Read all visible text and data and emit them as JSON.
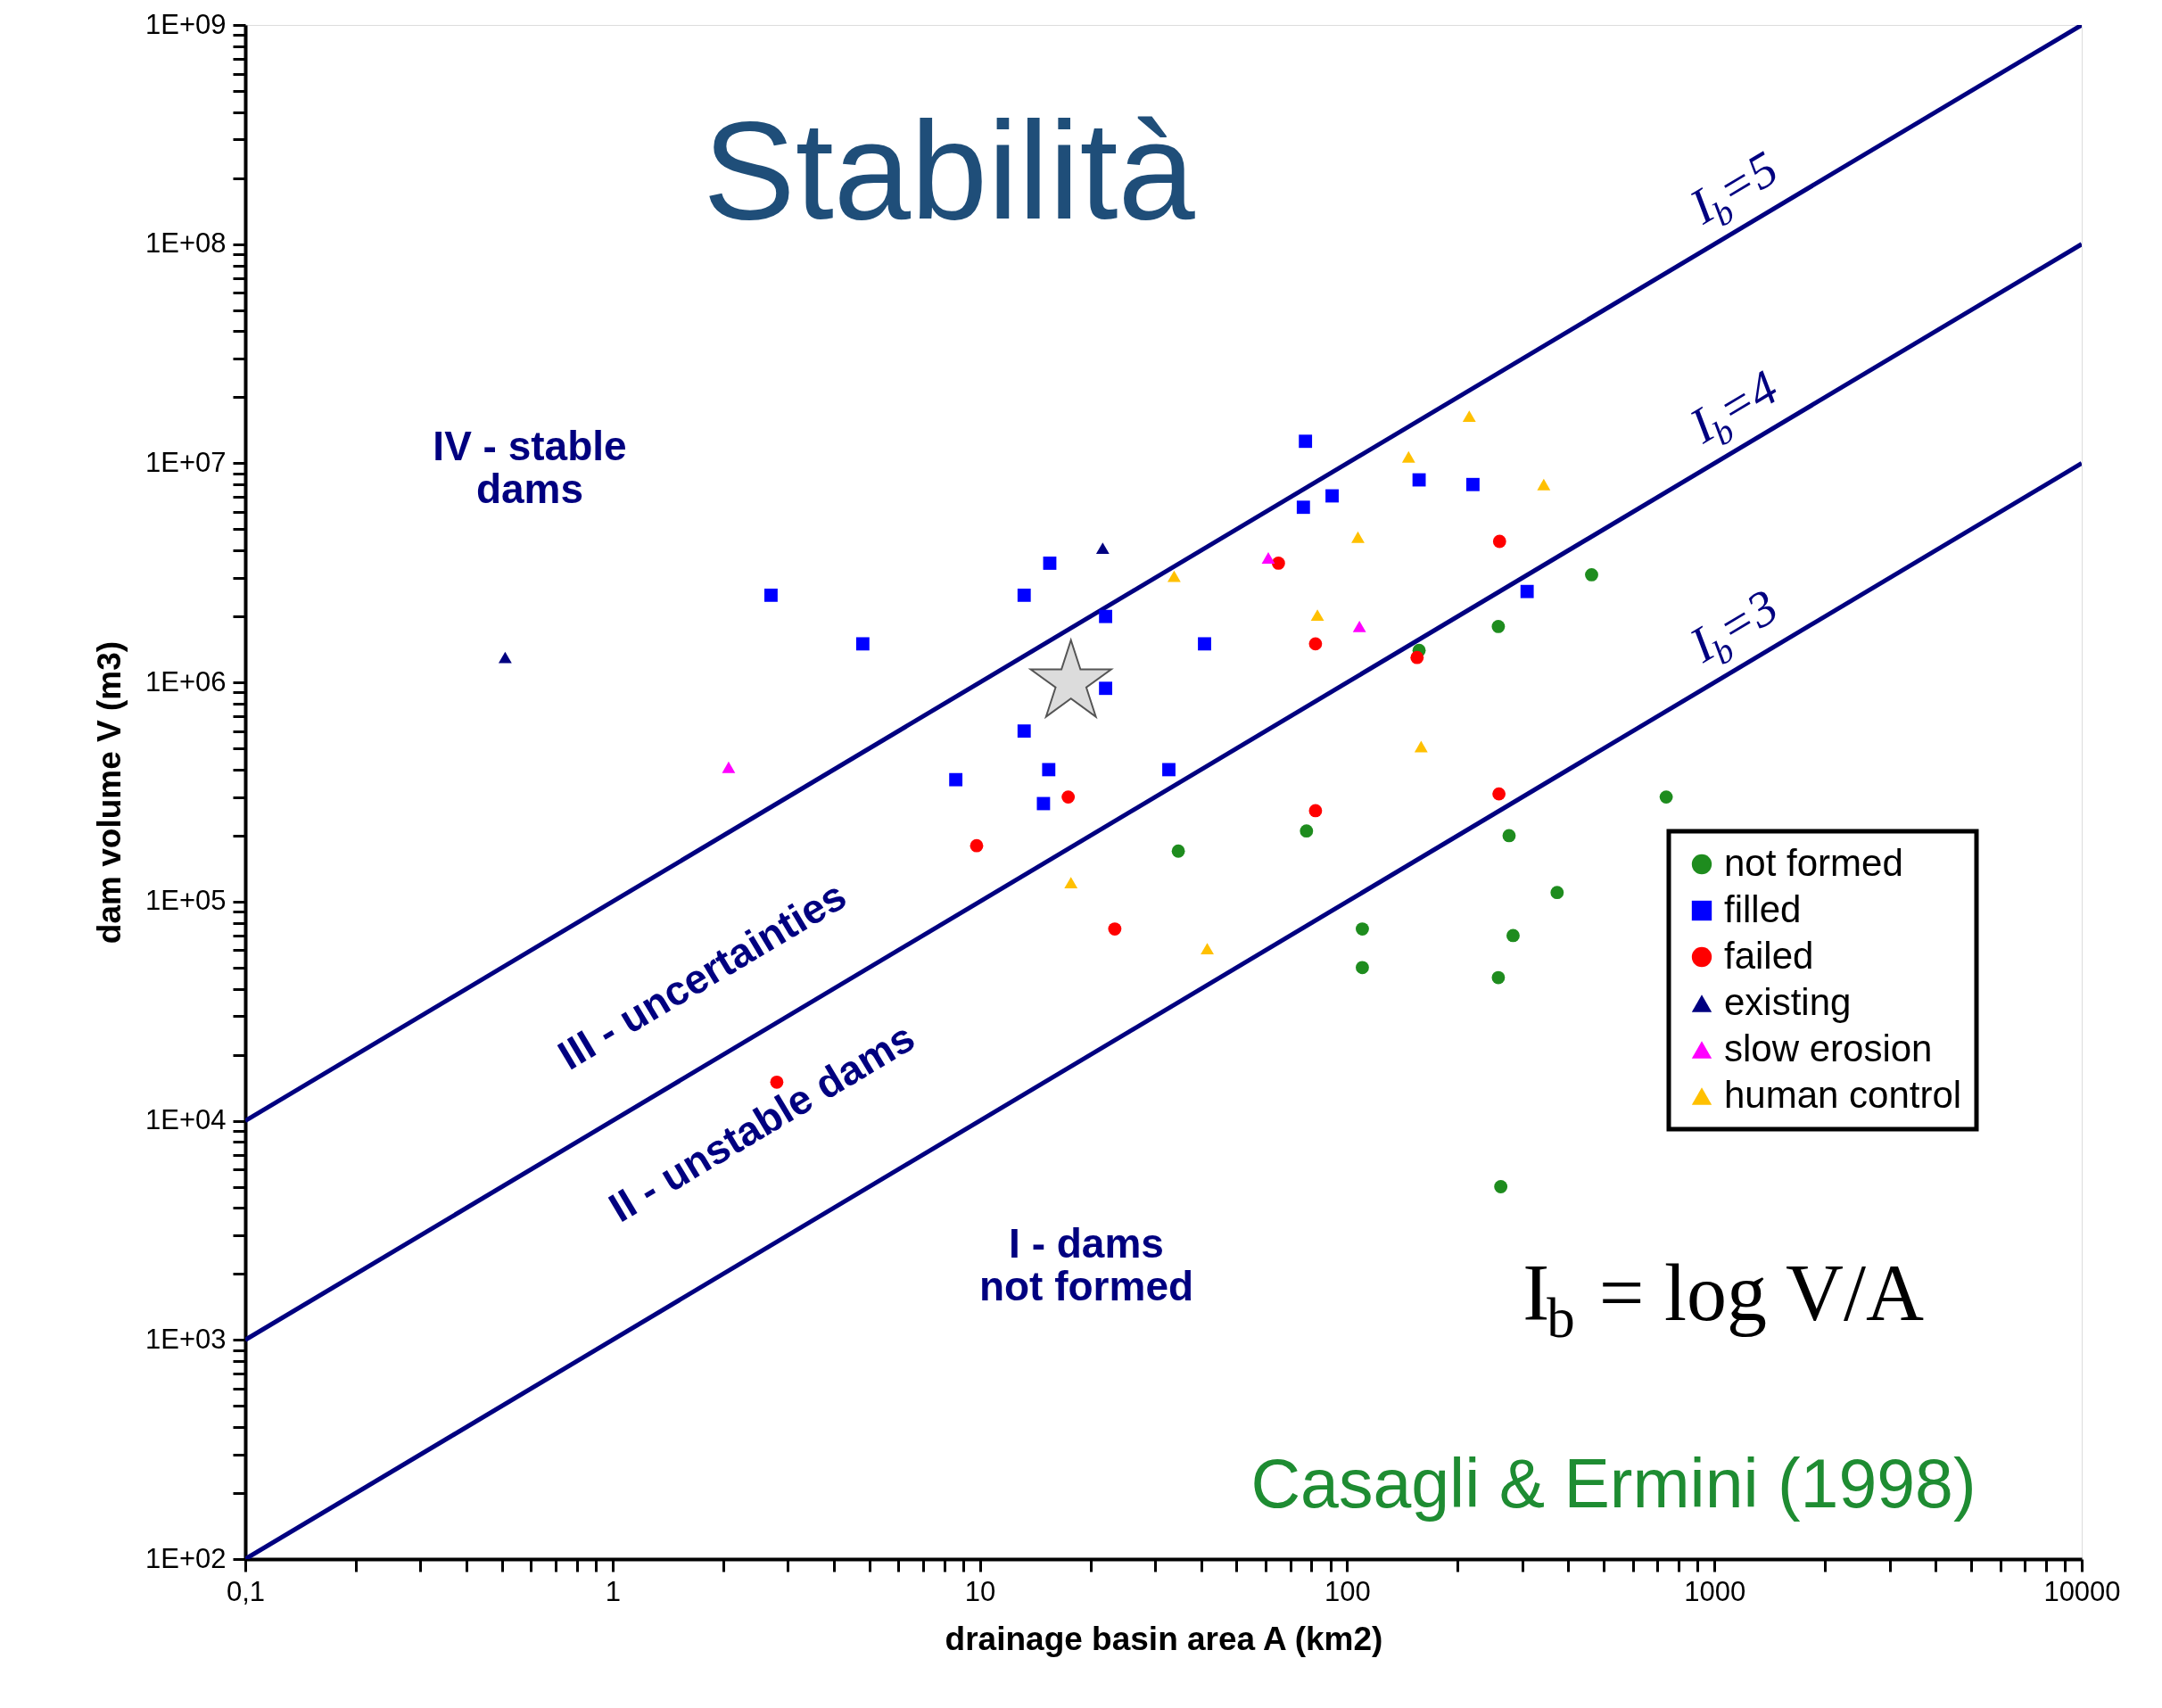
{
  "chart_data": {
    "type": "scatter",
    "title": "Stabilità",
    "xlabel": "drainage basin area A (km2)",
    "ylabel": "dam volume V (m3)",
    "log": "xy",
    "grid": false,
    "legend": "right",
    "xlim": [
      0.1,
      10000
    ],
    "ylim": [
      100,
      1000000000.0
    ],
    "xticks": [
      {
        "value": 0.1,
        "label": "0,1"
      },
      {
        "value": 0.2,
        "label": null
      },
      {
        "value": 0.3,
        "label": null
      },
      {
        "value": 0.4,
        "label": null
      },
      {
        "value": 0.5,
        "label": null
      },
      {
        "value": 0.6,
        "label": null
      },
      {
        "value": 0.7,
        "label": null
      },
      {
        "value": 0.8,
        "label": null
      },
      {
        "value": 0.9,
        "label": null
      },
      1,
      {
        "value": 2,
        "label": null
      },
      {
        "value": 3,
        "label": null
      },
      {
        "value": 4,
        "label": null
      },
      {
        "value": 5,
        "label": null
      },
      {
        "value": 6,
        "label": null
      },
      {
        "value": 7,
        "label": null
      },
      {
        "value": 8,
        "label": null
      },
      {
        "value": 9,
        "label": null
      },
      10,
      {
        "value": 20,
        "label": null
      },
      {
        "value": 30,
        "label": null
      },
      {
        "value": 40,
        "label": null
      },
      {
        "value": 50,
        "label": null
      },
      {
        "value": 60,
        "label": null
      },
      {
        "value": 70,
        "label": null
      },
      {
        "value": 80,
        "label": null
      },
      {
        "value": 90,
        "label": null
      },
      100,
      {
        "value": 200,
        "label": null
      },
      {
        "value": 300,
        "label": null
      },
      {
        "value": 400,
        "label": null
      },
      {
        "value": 500,
        "label": null
      },
      {
        "value": 600,
        "label": null
      },
      {
        "value": 700,
        "label": null
      },
      {
        "value": 800,
        "label": null
      },
      {
        "value": 900,
        "label": null
      },
      1000,
      {
        "value": 2000,
        "label": null
      },
      {
        "value": 3000,
        "label": null
      },
      {
        "value": 4000,
        "label": null
      },
      {
        "value": 5000,
        "label": null
      },
      {
        "value": 6000,
        "label": null
      },
      {
        "value": 7000,
        "label": null
      },
      {
        "value": 8000,
        "label": null
      },
      {
        "value": 9000,
        "label": null
      },
      10000
    ],
    "yticks": [
      {
        "value": 100.0,
        "label": "1E+02"
      },
      {
        "value": 200.0,
        "label": null
      },
      {
        "value": 300.0,
        "label": null
      },
      {
        "value": 400.0,
        "label": null
      },
      {
        "value": 500.0,
        "label": null
      },
      {
        "value": 600.0,
        "label": null
      },
      {
        "value": 700.0,
        "label": null
      },
      {
        "value": 800.0,
        "label": null
      },
      {
        "value": 900.0,
        "label": null
      },
      {
        "value": 1000.0,
        "label": "1E+03"
      },
      {
        "value": 2000.0,
        "label": null
      },
      {
        "value": 3000.0,
        "label": null
      },
      {
        "value": 4000.0,
        "label": null
      },
      {
        "value": 5000.0,
        "label": null
      },
      {
        "value": 6000.0,
        "label": null
      },
      {
        "value": 7000.0,
        "label": null
      },
      {
        "value": 8000.0,
        "label": null
      },
      {
        "value": 9000.0,
        "label": null
      },
      {
        "value": 10000.0,
        "label": "1E+04"
      },
      {
        "value": 20000.0,
        "label": null
      },
      {
        "value": 30000.0,
        "label": null
      },
      {
        "value": 40000.0,
        "label": null
      },
      {
        "value": 50000.0,
        "label": null
      },
      {
        "value": 60000.0,
        "label": null
      },
      {
        "value": 70000.0,
        "label": null
      },
      {
        "value": 80000.0,
        "label": null
      },
      {
        "value": 90000.0,
        "label": null
      },
      {
        "value": 100000.0,
        "label": "1E+05"
      },
      {
        "value": 200000.0,
        "label": null
      },
      {
        "value": 300000.0,
        "label": null
      },
      {
        "value": 400000.0,
        "label": null
      },
      {
        "value": 500000.0,
        "label": null
      },
      {
        "value": 600000.0,
        "label": null
      },
      {
        "value": 700000.0,
        "label": null
      },
      {
        "value": 800000.0,
        "label": null
      },
      {
        "value": 900000.0,
        "label": null
      },
      {
        "value": 1000000.0,
        "label": "1E+06"
      },
      {
        "value": 2000000.0,
        "label": null
      },
      {
        "value": 3000000.0,
        "label": null
      },
      {
        "value": 4000000.0,
        "label": null
      },
      {
        "value": 5000000.0,
        "label": null
      },
      {
        "value": 6000000.0,
        "label": null
      },
      {
        "value": 7000000.0,
        "label": null
      },
      {
        "value": 8000000.0,
        "label": null
      },
      {
        "value": 9000000.0,
        "label": null
      },
      {
        "value": 10000000.0,
        "label": "1E+07"
      },
      {
        "value": 20000000.0,
        "label": null
      },
      {
        "value": 30000000.0,
        "label": null
      },
      {
        "value": 40000000.0,
        "label": null
      },
      {
        "value": 50000000.0,
        "label": null
      },
      {
        "value": 60000000.0,
        "label": null
      },
      {
        "value": 70000000.0,
        "label": null
      },
      {
        "value": 80000000.0,
        "label": null
      },
      {
        "value": 90000000.0,
        "label": null
      },
      {
        "value": 100000000.0,
        "label": "1E+08"
      },
      {
        "value": 200000000.0,
        "label": null
      },
      {
        "value": 300000000.0,
        "label": null
      },
      {
        "value": 400000000.0,
        "label": null
      },
      {
        "value": 500000000.0,
        "label": null
      },
      {
        "value": 600000000.0,
        "label": null
      },
      {
        "value": 700000000.0,
        "label": null
      },
      {
        "value": 800000000.0,
        "label": null
      },
      {
        "value": 900000000.0,
        "label": null
      },
      {
        "value": 1000000000.0,
        "label": "1E+09"
      }
    ],
    "series": [
      {
        "name": "not formed",
        "marker": "circle",
        "color": "#1e8c1e",
        "x": [
          463,
          157,
          258,
          34.7,
          77.5,
          276,
          739,
          373,
          110,
          283,
          110,
          258,
          262
        ],
        "values": [
          3100000.0,
          1400000.0,
          1800000.0,
          170000.0,
          210000.0,
          200000.0,
          300000.0,
          110000.0,
          75000.0,
          70000.0,
          50000.0,
          45000.0,
          5000.0
        ]
      },
      {
        "name": "filled",
        "marker": "square",
        "color": "#0000ff",
        "x": [
          2.7,
          4.8,
          13.2,
          15.5,
          22,
          22,
          13.2,
          15.4,
          14.9,
          8.6,
          32.7,
          40.9,
          77,
          76,
          91,
          157,
          220,
          309
        ],
        "values": [
          2500000.0,
          1500000.0,
          2500000.0,
          3500000.0,
          2000000.0,
          940000.0,
          600000.0,
          400000.0,
          280000.0,
          360000.0,
          400000.0,
          1500000.0,
          12600000.0,
          6300000.0,
          7100000.0,
          8400000.0,
          8000000.0,
          2600000.0
        ]
      },
      {
        "name": "failed",
        "marker": "circle",
        "color": "#ff0000",
        "x": [
          65,
          260,
          82,
          155,
          17.4,
          82,
          259,
          9.8,
          23.3,
          2.8
        ],
        "values": [
          3500000.0,
          4400000.0,
          1500000.0,
          1300000.0,
          300000.0,
          260000.0,
          310000.0,
          180000.0,
          75000.0,
          15000.0
        ]
      },
      {
        "name": "existing",
        "marker": "triangle",
        "color": "#000080",
        "x": [
          0.51,
          21.6
        ],
        "values": [
          1300000.0,
          4100000.0
        ]
      },
      {
        "name": "slow erosion",
        "marker": "triangle",
        "color": "#ff00ff",
        "x": [
          2.07,
          61,
          108
        ],
        "values": [
          410000.0,
          3700000.0,
          1800000.0
        ]
      },
      {
        "name": "human control",
        "marker": "triangle",
        "color": "#ffc000",
        "x": [
          215,
          147,
          343,
          107,
          33.8,
          83,
          159,
          17.7,
          41.6
        ],
        "values": [
          16400000.0,
          10700000.0,
          8000000.0,
          4600000.0,
          3050000.0,
          2030000.0,
          510000.0,
          122000.0,
          61000.0
        ]
      },
      {
        "marker": "star",
        "color": "#dcdcdc",
        "x": [
          17.7
        ],
        "values": [
          1000000.0
        ]
      },
      {
        "name": "I$_{b}$=5",
        "type": "line",
        "color": "#000080",
        "x": [
          0.1,
          10000
        ],
        "values": [
          10000.0,
          1000000000.0
        ]
      },
      {
        "name": "I$_{b}$=4",
        "type": "line",
        "color": "#000080",
        "x": [
          0.1,
          10000
        ],
        "values": [
          1000.0,
          100000000.0
        ]
      },
      {
        "name": "I$_{b}$=3",
        "type": "line",
        "color": "#000080",
        "x": [
          0.1,
          10000
        ],
        "values": [
          100.0,
          10000000.0
        ]
      }
    ],
    "annotations": [
      "IV - stable\ndams",
      "III - uncertainties",
      "II - unstable dams",
      "I - dams\nnot formed",
      "I$_{b}$ = log V/A",
      "Casagli & Ermini (1998)"
    ]
  }
}
